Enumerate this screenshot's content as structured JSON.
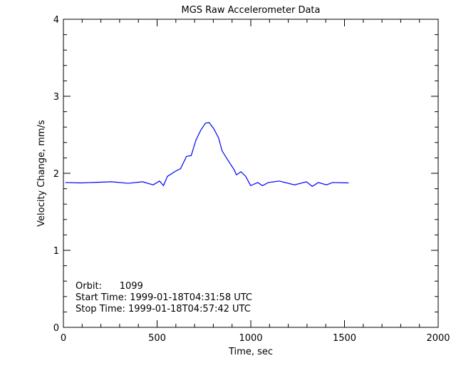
{
  "chart_data": {
    "type": "line",
    "title": "MGS Raw Accelerometer Data",
    "xlabel": "Time, sec",
    "ylabel": "Velocity Change, mm/s",
    "xlim": [
      0,
      2000
    ],
    "ylim": [
      0,
      4
    ],
    "xticks": [
      "0",
      "500",
      "1000",
      "1500",
      "2000"
    ],
    "yticks": [
      "0",
      "1",
      "2",
      "3",
      "4"
    ],
    "grid": false,
    "line_color": "#0000ff",
    "annotations": [
      "Orbit:      1099",
      "Start Time: 1999-01-18T04:31:58 UTC",
      "Stop Time: 1999-01-18T04:57:42 UTC"
    ],
    "series": [
      {
        "x": [
          10,
          92,
          257,
          346,
          422,
          479,
          513,
          534,
          555,
          600,
          625,
          657,
          682,
          707,
          733,
          758,
          777,
          802,
          828,
          847,
          878,
          910,
          923,
          948,
          973,
          999,
          1037,
          1062,
          1094,
          1151,
          1233,
          1297,
          1328,
          1360,
          1404,
          1436,
          1522
        ],
        "y": [
          1.88,
          1.875,
          1.89,
          1.87,
          1.89,
          1.85,
          1.9,
          1.84,
          1.96,
          2.03,
          2.06,
          2.22,
          2.23,
          2.43,
          2.56,
          2.65,
          2.66,
          2.58,
          2.46,
          2.29,
          2.17,
          2.05,
          1.98,
          2.02,
          1.96,
          1.84,
          1.88,
          1.84,
          1.88,
          1.9,
          1.85,
          1.89,
          1.83,
          1.88,
          1.85,
          1.88,
          1.875
        ]
      }
    ]
  }
}
